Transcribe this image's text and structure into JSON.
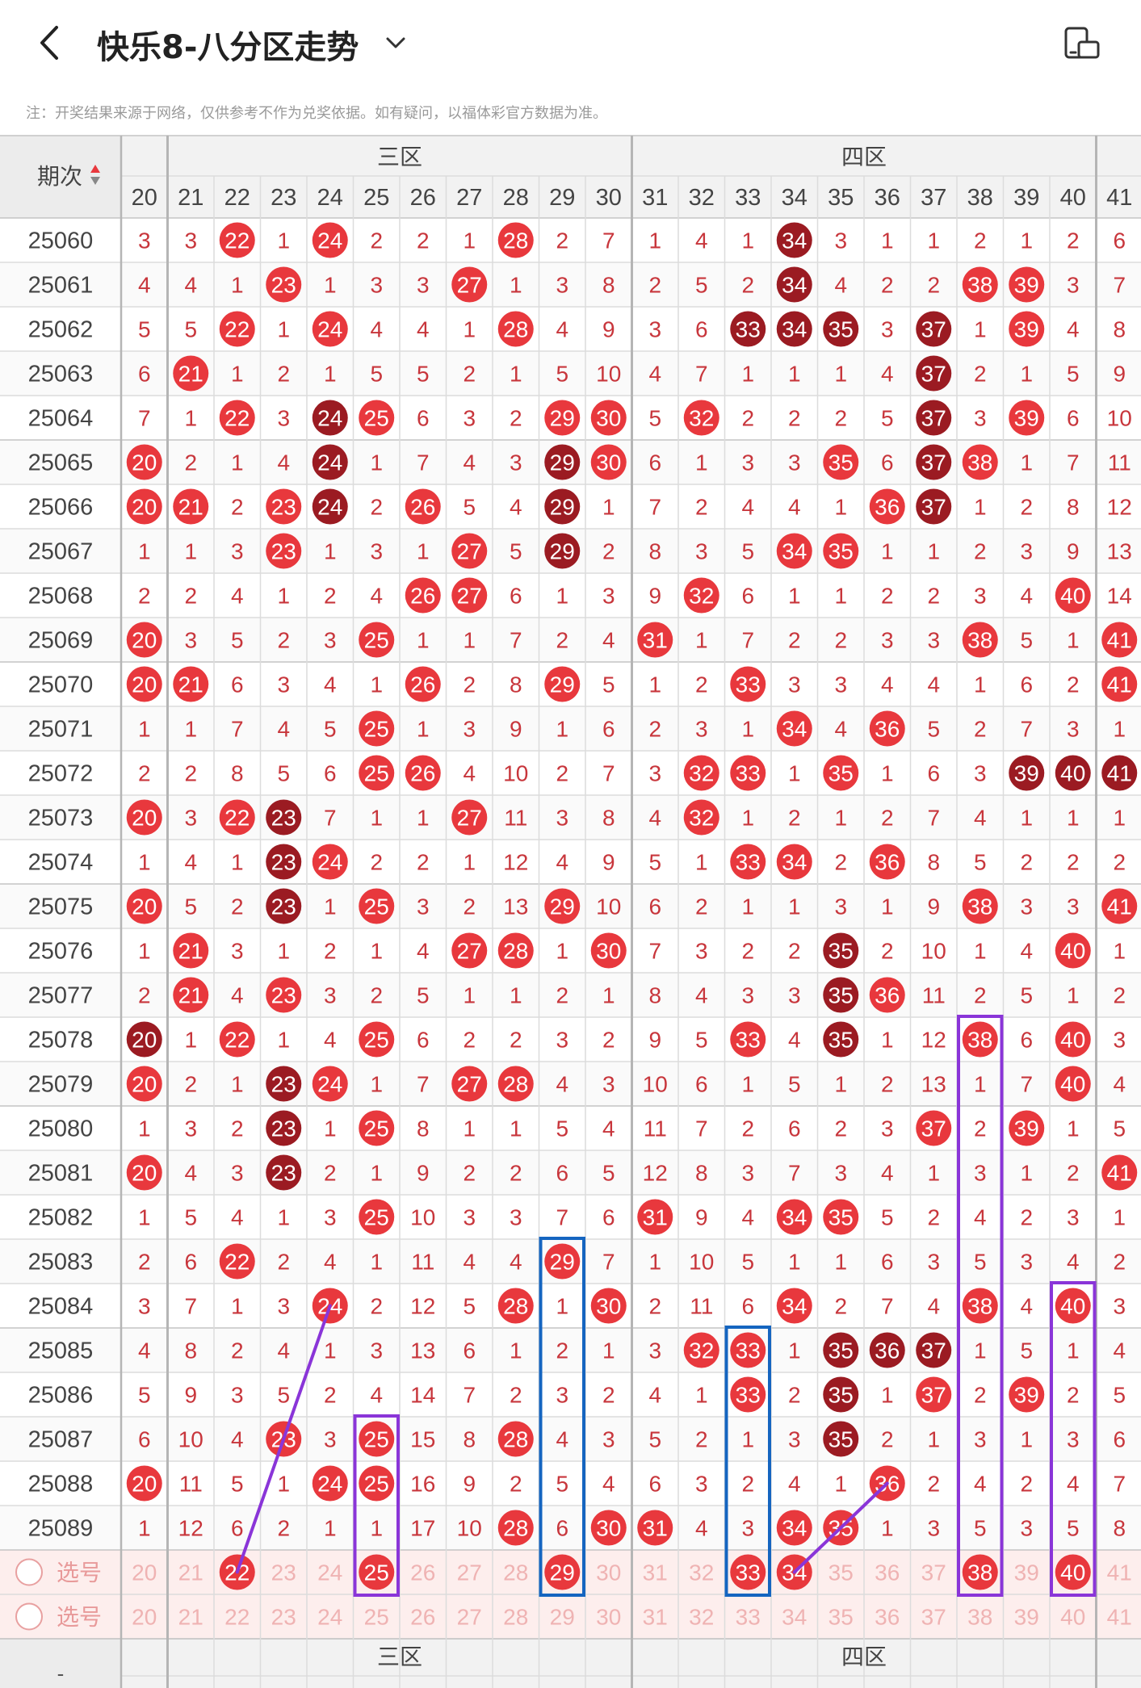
{
  "header": {
    "title": "快乐8-八分区走势",
    "note": "注：开奖结果来源于网络，仅供参考不作为兑奖依据。如有疑问，以福体彩官方数据为准。"
  },
  "table": {
    "period_header": "期次",
    "zones": [
      "三区",
      "四区"
    ],
    "numbers": [
      20,
      21,
      22,
      23,
      24,
      25,
      26,
      27,
      28,
      29,
      30,
      31,
      32,
      33,
      34,
      35,
      36,
      37,
      38,
      39,
      40,
      41
    ],
    "select_label": "选号",
    "footer_left": "-",
    "rows": [
      {
        "period": "25060",
        "cells": [
          3,
          3,
          22,
          1,
          24,
          2,
          2,
          1,
          28,
          2,
          7,
          1,
          4,
          1,
          34,
          3,
          1,
          1,
          2,
          1,
          2,
          6
        ]
      },
      {
        "period": "25061",
        "cells": [
          4,
          4,
          1,
          23,
          1,
          3,
          3,
          27,
          1,
          3,
          8,
          2,
          5,
          2,
          34,
          4,
          2,
          2,
          38,
          39,
          3,
          7
        ]
      },
      {
        "period": "25062",
        "cells": [
          5,
          5,
          22,
          1,
          24,
          4,
          4,
          1,
          28,
          4,
          9,
          3,
          6,
          33,
          34,
          35,
          3,
          37,
          1,
          39,
          4,
          8
        ]
      },
      {
        "period": "25063",
        "cells": [
          6,
          21,
          1,
          2,
          1,
          5,
          5,
          2,
          1,
          5,
          10,
          4,
          7,
          1,
          1,
          1,
          4,
          37,
          2,
          1,
          5,
          9
        ]
      },
      {
        "period": "25064",
        "cells": [
          7,
          1,
          22,
          3,
          24,
          25,
          6,
          3,
          2,
          29,
          30,
          5,
          32,
          2,
          2,
          2,
          5,
          37,
          3,
          39,
          6,
          10
        ]
      },
      {
        "period": "25065",
        "cells": [
          20,
          2,
          1,
          4,
          24,
          1,
          7,
          4,
          3,
          29,
          30,
          6,
          1,
          3,
          3,
          35,
          6,
          37,
          38,
          1,
          7,
          11
        ]
      },
      {
        "period": "25066",
        "cells": [
          20,
          21,
          2,
          23,
          24,
          2,
          26,
          5,
          4,
          29,
          1,
          7,
          2,
          4,
          4,
          1,
          36,
          37,
          1,
          2,
          8,
          12
        ]
      },
      {
        "period": "25067",
        "cells": [
          1,
          1,
          3,
          23,
          1,
          3,
          1,
          27,
          5,
          29,
          2,
          8,
          3,
          5,
          34,
          35,
          1,
          1,
          2,
          3,
          9,
          13
        ]
      },
      {
        "period": "25068",
        "cells": [
          2,
          2,
          4,
          1,
          2,
          4,
          26,
          27,
          6,
          1,
          3,
          9,
          32,
          6,
          1,
          1,
          2,
          2,
          3,
          4,
          40,
          14
        ]
      },
      {
        "period": "25069",
        "cells": [
          20,
          3,
          5,
          2,
          3,
          25,
          1,
          1,
          7,
          2,
          4,
          31,
          1,
          7,
          2,
          2,
          3,
          3,
          38,
          5,
          1,
          41
        ]
      },
      {
        "period": "25070",
        "cells": [
          20,
          21,
          6,
          3,
          4,
          1,
          26,
          2,
          8,
          29,
          5,
          1,
          2,
          33,
          3,
          3,
          4,
          4,
          1,
          6,
          2,
          41
        ]
      },
      {
        "period": "25071",
        "cells": [
          1,
          1,
          7,
          4,
          5,
          25,
          1,
          3,
          9,
          1,
          6,
          2,
          3,
          1,
          34,
          4,
          36,
          5,
          2,
          7,
          3,
          1
        ]
      },
      {
        "period": "25072",
        "cells": [
          2,
          2,
          8,
          5,
          6,
          25,
          26,
          4,
          10,
          2,
          7,
          3,
          32,
          33,
          1,
          35,
          1,
          6,
          3,
          39,
          40,
          41
        ]
      },
      {
        "period": "25073",
        "cells": [
          20,
          3,
          22,
          23,
          7,
          1,
          1,
          27,
          11,
          3,
          8,
          4,
          32,
          1,
          2,
          1,
          2,
          7,
          4,
          1,
          1,
          1
        ]
      },
      {
        "period": "25074",
        "cells": [
          1,
          4,
          1,
          23,
          24,
          2,
          2,
          1,
          12,
          4,
          9,
          5,
          1,
          33,
          34,
          2,
          36,
          8,
          5,
          2,
          2,
          2
        ]
      },
      {
        "period": "25075",
        "cells": [
          20,
          5,
          2,
          23,
          1,
          25,
          3,
          2,
          13,
          29,
          10,
          6,
          2,
          1,
          1,
          3,
          1,
          9,
          38,
          3,
          3,
          41
        ]
      },
      {
        "period": "25076",
        "cells": [
          1,
          21,
          3,
          1,
          2,
          1,
          4,
          27,
          28,
          1,
          30,
          7,
          3,
          2,
          2,
          35,
          2,
          10,
          1,
          4,
          40,
          1
        ]
      },
      {
        "period": "25077",
        "cells": [
          2,
          21,
          4,
          23,
          3,
          2,
          5,
          1,
          1,
          2,
          1,
          8,
          4,
          3,
          3,
          35,
          36,
          11,
          2,
          5,
          1,
          2
        ]
      },
      {
        "period": "25078",
        "cells": [
          20,
          1,
          22,
          1,
          4,
          25,
          6,
          2,
          2,
          3,
          2,
          9,
          5,
          33,
          4,
          35,
          1,
          12,
          38,
          6,
          40,
          3
        ]
      },
      {
        "period": "25079",
        "cells": [
          20,
          2,
          1,
          23,
          24,
          1,
          7,
          27,
          28,
          4,
          3,
          10,
          6,
          1,
          5,
          1,
          2,
          13,
          1,
          7,
          40,
          4
        ]
      },
      {
        "period": "25080",
        "cells": [
          1,
          3,
          2,
          23,
          1,
          25,
          8,
          1,
          1,
          5,
          4,
          11,
          7,
          2,
          6,
          2,
          3,
          37,
          2,
          39,
          1,
          5
        ]
      },
      {
        "period": "25081",
        "cells": [
          20,
          4,
          3,
          23,
          2,
          1,
          9,
          2,
          2,
          6,
          5,
          12,
          8,
          3,
          7,
          3,
          4,
          1,
          3,
          1,
          2,
          41
        ]
      },
      {
        "period": "25082",
        "cells": [
          1,
          5,
          4,
          1,
          3,
          25,
          10,
          3,
          3,
          7,
          6,
          31,
          9,
          4,
          34,
          35,
          5,
          2,
          4,
          2,
          3,
          1
        ]
      },
      {
        "period": "25083",
        "cells": [
          2,
          6,
          22,
          2,
          4,
          1,
          11,
          4,
          4,
          29,
          7,
          1,
          10,
          5,
          1,
          1,
          6,
          3,
          5,
          3,
          4,
          2
        ]
      },
      {
        "period": "25084",
        "cells": [
          3,
          7,
          1,
          3,
          24,
          2,
          12,
          5,
          28,
          1,
          30,
          2,
          11,
          6,
          34,
          2,
          7,
          4,
          38,
          4,
          40,
          3
        ]
      },
      {
        "period": "25085",
        "cells": [
          4,
          8,
          2,
          4,
          1,
          3,
          13,
          6,
          1,
          2,
          1,
          3,
          32,
          33,
          1,
          35,
          36,
          37,
          1,
          5,
          1,
          4
        ]
      },
      {
        "period": "25086",
        "cells": [
          5,
          9,
          3,
          5,
          2,
          4,
          14,
          7,
          2,
          3,
          2,
          4,
          1,
          33,
          2,
          35,
          1,
          37,
          2,
          39,
          2,
          5
        ]
      },
      {
        "period": "25087",
        "cells": [
          6,
          10,
          4,
          23,
          3,
          25,
          15,
          8,
          28,
          4,
          3,
          5,
          2,
          1,
          3,
          35,
          2,
          1,
          3,
          1,
          3,
          6
        ]
      },
      {
        "period": "25088",
        "cells": [
          20,
          11,
          5,
          1,
          24,
          25,
          16,
          9,
          2,
          5,
          4,
          6,
          3,
          2,
          4,
          1,
          36,
          2,
          4,
          2,
          4,
          7
        ]
      },
      {
        "period": "25089",
        "cells": [
          1,
          12,
          6,
          2,
          1,
          1,
          17,
          10,
          28,
          6,
          30,
          31,
          4,
          3,
          34,
          35,
          1,
          3,
          5,
          3,
          5,
          8
        ]
      }
    ],
    "dark_balls": [
      "25060-34",
      "25061-34",
      "25062-33",
      "25062-34",
      "25062-35",
      "25062-37",
      "25063-37",
      "25064-24",
      "25064-37",
      "25065-24",
      "25065-29",
      "25065-37",
      "25066-24",
      "25066-29",
      "25066-37",
      "25067-29",
      "25072-39",
      "25072-40",
      "25072-41",
      "25073-23",
      "25074-23",
      "25075-23",
      "25076-35",
      "25077-35",
      "25078-20",
      "25078-35",
      "25079-23",
      "25080-23",
      "25081-23",
      "25085-35",
      "25085-36",
      "25085-37",
      "25086-35",
      "25087-35"
    ],
    "selected_balls": [
      22,
      25,
      29,
      33,
      34,
      38,
      40
    ],
    "colors": {
      "ball_red": "#e8383d",
      "ball_dark": "#9b1b22",
      "miss_text": "#c8363c",
      "grid_line": "#dcdcdc",
      "header_bg": "#f2f2f2",
      "select_bg": "#fdeeed",
      "box_purple": "#8a35d8",
      "box_blue": "#1565c0",
      "line_purple": "#8a35d8"
    },
    "annotations": {
      "purple_boxes": [
        {
          "number": 25,
          "from": "25087",
          "to": "选号"
        },
        {
          "number": 38,
          "from": "25078",
          "to": "选号"
        },
        {
          "number": 40,
          "from": "25084",
          "to": "选号"
        }
      ],
      "blue_boxes": [
        {
          "number": 29,
          "from": "25083",
          "to": "选号"
        },
        {
          "number": 33,
          "from": "25085",
          "to": "选号"
        }
      ],
      "purple_lines": [
        {
          "from": "25084-24",
          "to": "选号-22"
        },
        {
          "from": "25088-36",
          "to": "选号-34"
        }
      ]
    }
  }
}
